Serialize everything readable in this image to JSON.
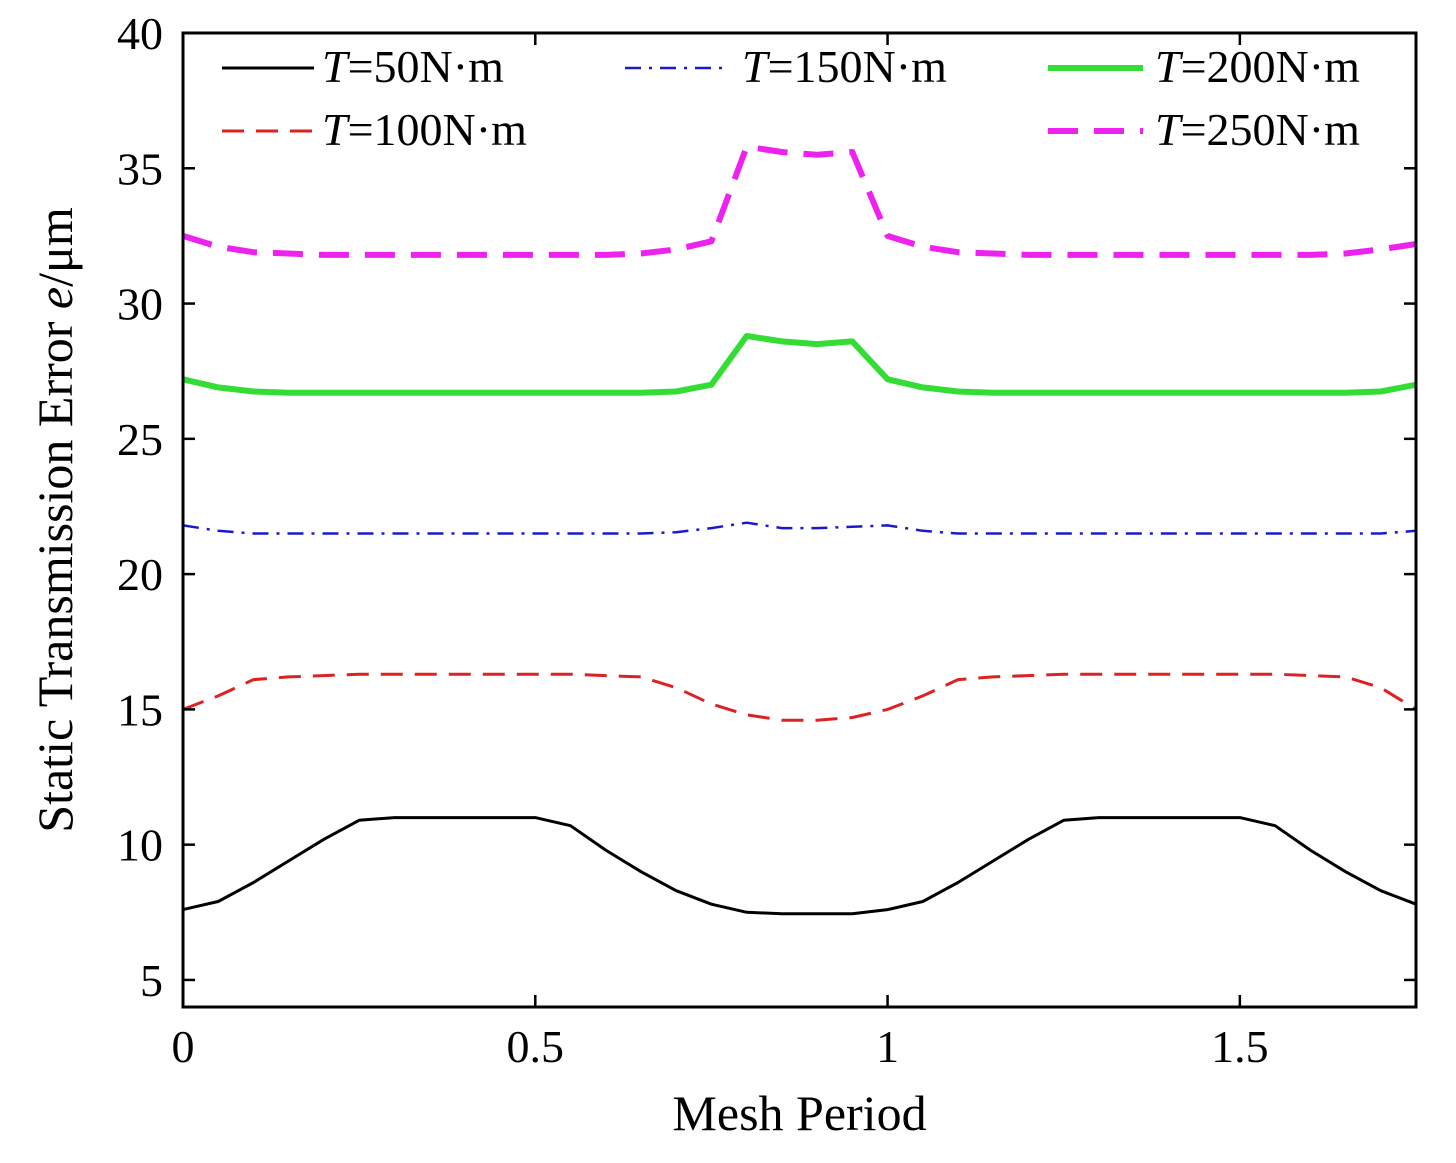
{
  "chart_data": {
    "type": "line",
    "title": "",
    "xlabel": "Mesh Period",
    "ylabel": "Static Transmission Error e/μm",
    "xlim": [
      0,
      1.75
    ],
    "ylim": [
      4,
      40
    ],
    "xticks": [
      0,
      0.5,
      1,
      1.5
    ],
    "xtick_labels": [
      "0",
      "0.5",
      "1",
      "1.5"
    ],
    "yticks": [
      5,
      10,
      15,
      20,
      25,
      30,
      35,
      40
    ],
    "ytick_labels": [
      "5",
      "10",
      "15",
      "20",
      "25",
      "30",
      "35",
      "40"
    ],
    "grid": false,
    "legend_position": "top",
    "x": [
      0,
      0.05,
      0.1,
      0.15,
      0.2,
      0.25,
      0.3,
      0.35,
      0.4,
      0.45,
      0.5,
      0.55,
      0.6,
      0.65,
      0.7,
      0.75,
      0.8,
      0.85,
      0.9,
      0.95,
      1.0,
      1.05,
      1.1,
      1.15,
      1.2,
      1.25,
      1.3,
      1.35,
      1.4,
      1.45,
      1.5,
      1.55,
      1.6,
      1.65,
      1.7,
      1.75
    ],
    "series": [
      {
        "name": "=50N·m",
        "name_italic": "T",
        "color": "#000000",
        "style": "solid",
        "values": [
          7.6,
          7.9,
          8.6,
          9.4,
          10.2,
          10.9,
          11.0,
          11.0,
          11.0,
          11.0,
          11.0,
          10.7,
          9.8,
          9.0,
          8.3,
          7.8,
          7.5,
          7.45,
          7.45,
          7.45,
          7.6,
          7.9,
          8.6,
          9.4,
          10.2,
          10.9,
          11.0,
          11.0,
          11.0,
          11.0,
          11.0,
          10.7,
          9.8,
          9.0,
          8.3,
          7.8
        ]
      },
      {
        "name": "=100N·m",
        "name_italic": "T",
        "color": "#dd2222",
        "style": "dashed",
        "values": [
          15.0,
          15.5,
          16.1,
          16.2,
          16.25,
          16.3,
          16.3,
          16.3,
          16.3,
          16.3,
          16.3,
          16.3,
          16.25,
          16.2,
          15.8,
          15.2,
          14.8,
          14.6,
          14.6,
          14.7,
          15.0,
          15.5,
          16.1,
          16.2,
          16.25,
          16.3,
          16.3,
          16.3,
          16.3,
          16.3,
          16.3,
          16.3,
          16.25,
          16.2,
          15.8,
          15.0
        ]
      },
      {
        "name": "=150N·m",
        "name_italic": "T",
        "color": "#1a1acc",
        "style": "dashdot",
        "values": [
          21.8,
          21.6,
          21.5,
          21.5,
          21.5,
          21.5,
          21.5,
          21.5,
          21.5,
          21.5,
          21.5,
          21.5,
          21.5,
          21.5,
          21.55,
          21.7,
          21.9,
          21.7,
          21.7,
          21.75,
          21.8,
          21.6,
          21.5,
          21.5,
          21.5,
          21.5,
          21.5,
          21.5,
          21.5,
          21.5,
          21.5,
          21.5,
          21.5,
          21.5,
          21.5,
          21.6
        ]
      },
      {
        "name": "=200N·m",
        "name_italic": "T",
        "color": "#33dd33",
        "style": "solid-thick",
        "values": [
          27.2,
          26.9,
          26.75,
          26.7,
          26.7,
          26.7,
          26.7,
          26.7,
          26.7,
          26.7,
          26.7,
          26.7,
          26.7,
          26.7,
          26.75,
          27.0,
          28.8,
          28.6,
          28.5,
          28.6,
          27.2,
          26.9,
          26.75,
          26.7,
          26.7,
          26.7,
          26.7,
          26.7,
          26.7,
          26.7,
          26.7,
          26.7,
          26.7,
          26.7,
          26.75,
          27.0
        ]
      },
      {
        "name": "=250N·m",
        "name_italic": "T",
        "color": "#ee22ee",
        "style": "dashed-thick",
        "values": [
          32.5,
          32.1,
          31.9,
          31.85,
          31.8,
          31.8,
          31.8,
          31.8,
          31.8,
          31.8,
          31.8,
          31.8,
          31.8,
          31.85,
          32.0,
          32.3,
          35.8,
          35.6,
          35.5,
          35.6,
          32.5,
          32.1,
          31.9,
          31.85,
          31.8,
          31.8,
          31.8,
          31.8,
          31.8,
          31.8,
          31.8,
          31.8,
          31.8,
          31.85,
          32.0,
          32.2
        ]
      }
    ]
  }
}
